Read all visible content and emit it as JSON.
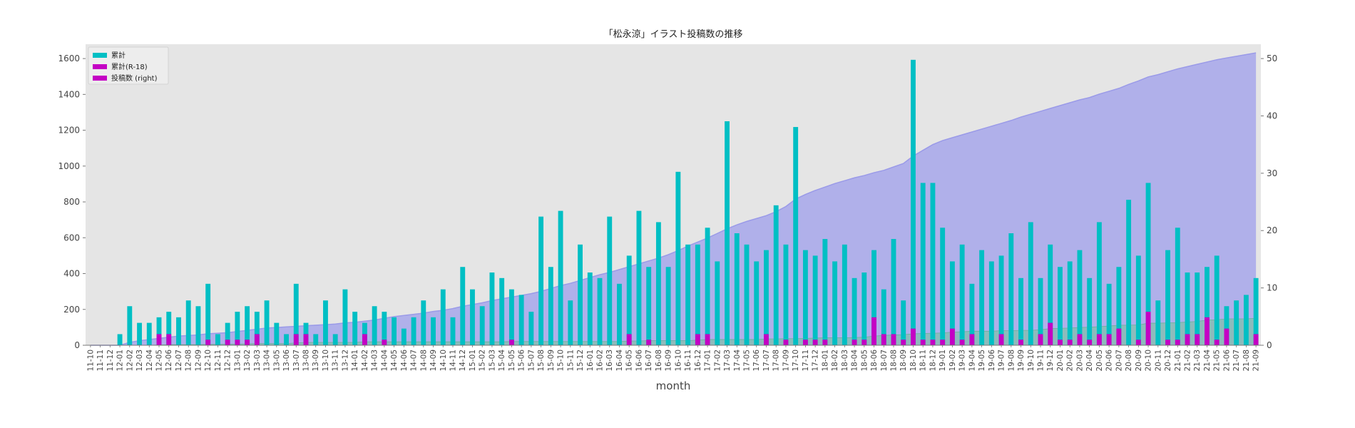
{
  "chart_data": {
    "type": "bar",
    "title": "「松永涼」イラスト投稿数の推移",
    "xlabel": "month",
    "ylabel": "",
    "ylim": [
      0,
      1680
    ],
    "ylim_right": [
      0,
      52.5
    ],
    "yticks": [
      0,
      200,
      400,
      600,
      800,
      1000,
      1200,
      1400,
      1600
    ],
    "yticks_right": [
      0,
      10,
      20,
      30,
      40,
      50
    ],
    "grid": false,
    "legend_position": "top-left",
    "background": "#e5e5e5",
    "colors": {
      "total": "#00bfc4",
      "r18": "#c400c4",
      "area_fill": "#b0b0ea",
      "area_line": "#9a9ae8",
      "right_area_fill": "#7fc0a8"
    },
    "categories": [
      "11-10",
      "11-11",
      "11-12",
      "12-01",
      "12-02",
      "12-03",
      "12-04",
      "12-05",
      "12-06",
      "12-07",
      "12-08",
      "12-09",
      "12-10",
      "12-11",
      "12-12",
      "13-01",
      "13-02",
      "13-03",
      "13-04",
      "13-05",
      "13-06",
      "13-07",
      "13-08",
      "13-09",
      "13-10",
      "13-11",
      "13-12",
      "14-01",
      "14-02",
      "14-03",
      "14-04",
      "14-05",
      "14-06",
      "14-07",
      "14-08",
      "14-09",
      "14-10",
      "14-11",
      "14-12",
      "15-01",
      "15-02",
      "15-03",
      "15-04",
      "15-05",
      "15-06",
      "15-07",
      "15-08",
      "15-09",
      "15-10",
      "15-11",
      "15-12",
      "16-01",
      "16-02",
      "16-03",
      "16-04",
      "16-05",
      "16-06",
      "16-07",
      "16-08",
      "16-09",
      "16-10",
      "16-11",
      "16-12",
      "17-01",
      "17-02",
      "17-03",
      "17-04",
      "17-05",
      "17-06",
      "17-07",
      "17-08",
      "17-09",
      "17-10",
      "17-11",
      "17-12",
      "18-01",
      "18-02",
      "18-03",
      "18-04",
      "18-05",
      "18-06",
      "18-07",
      "18-08",
      "18-09",
      "18-10",
      "18-11",
      "18-12",
      "19-01",
      "19-02",
      "19-03",
      "19-04",
      "19-05",
      "19-06",
      "19-07",
      "19-08",
      "19-09",
      "19-10",
      "19-11",
      "19-12",
      "20-01",
      "20-02",
      "20-03",
      "20-04",
      "20-05",
      "20-06",
      "20-07",
      "20-08",
      "20-09",
      "20-10",
      "20-11",
      "20-12",
      "21-01",
      "21-02",
      "21-03",
      "21-04",
      "21-05",
      "21-06",
      "21-07",
      "21-08",
      "21-09"
    ],
    "series": [
      {
        "name": "累計",
        "axis": "left",
        "kind": "bar",
        "values": [
          0,
          0,
          0,
          62,
          218,
          125,
          125,
          156,
          187,
          156,
          250,
          218,
          343,
          62,
          125,
          187,
          218,
          187,
          250,
          125,
          62,
          343,
          125,
          62,
          250,
          62,
          312,
          187,
          125,
          218,
          187,
          156,
          93,
          156,
          250,
          156,
          312,
          156,
          437,
          312,
          218,
          406,
          375,
          312,
          281,
          187,
          718,
          437,
          750,
          250,
          562,
          406,
          375,
          718,
          343,
          500,
          750,
          437,
          687,
          437,
          968,
          562,
          562,
          656,
          468,
          1250,
          625,
          562,
          468,
          531,
          781,
          562,
          1218,
          531,
          500,
          593,
          468,
          562,
          375,
          406,
          531,
          312,
          593,
          250,
          1593,
          906,
          906,
          656,
          468,
          562,
          343,
          531,
          468,
          500,
          625,
          375,
          687,
          375,
          562,
          437,
          468,
          531,
          375,
          687,
          343,
          437,
          812,
          500,
          906,
          250,
          531,
          656,
          406,
          406,
          437,
          500,
          218,
          250,
          281,
          375
        ]
      },
      {
        "name": "累計(R-18)",
        "axis": "left",
        "kind": "bar",
        "values": [
          0,
          0,
          0,
          0,
          0,
          0,
          0,
          62,
          62,
          0,
          0,
          0,
          31,
          0,
          31,
          31,
          31,
          62,
          0,
          0,
          0,
          62,
          62,
          0,
          0,
          0,
          0,
          0,
          62,
          0,
          31,
          0,
          0,
          0,
          0,
          0,
          0,
          0,
          0,
          0,
          0,
          0,
          0,
          31,
          0,
          0,
          0,
          0,
          0,
          0,
          0,
          0,
          0,
          0,
          0,
          62,
          0,
          31,
          0,
          0,
          0,
          0,
          62,
          62,
          0,
          0,
          0,
          0,
          0,
          62,
          0,
          31,
          0,
          31,
          31,
          31,
          0,
          0,
          31,
          31,
          156,
          62,
          62,
          31,
          93,
          31,
          31,
          31,
          93,
          31,
          62,
          0,
          0,
          62,
          0,
          31,
          0,
          62,
          125,
          31,
          31,
          62,
          31,
          62,
          62,
          93,
          0,
          31,
          187,
          0,
          31,
          31,
          62,
          62,
          156,
          31,
          93,
          0,
          0,
          62
        ]
      },
      {
        "name": "投稿数 (right)",
        "axis": "right",
        "kind": "area",
        "values": [
          0,
          0,
          0,
          0,
          0.5,
          0.8,
          1.0,
          1.2,
          1.4,
          1.6,
          1.7,
          1.8,
          2.0,
          2.1,
          2.2,
          2.4,
          2.6,
          2.8,
          3.0,
          3.1,
          3.2,
          3.3,
          3.4,
          3.5,
          3.6,
          3.7,
          3.9,
          4.0,
          4.2,
          4.4,
          4.7,
          5.0,
          5.2,
          5.4,
          5.6,
          5.9,
          6.1,
          6.4,
          6.8,
          7.1,
          7.4,
          7.8,
          8.1,
          8.4,
          8.7,
          9.0,
          9.4,
          9.9,
          10.4,
          10.8,
          11.3,
          11.8,
          12.3,
          12.7,
          13.2,
          13.7,
          14.2,
          14.7,
          15.2,
          15.8,
          16.5,
          17.3,
          18.0,
          18.7,
          19.5,
          20.3,
          21.0,
          21.6,
          22.1,
          22.6,
          23.3,
          24.2,
          25.5,
          26.3,
          27.0,
          27.6,
          28.2,
          28.7,
          29.2,
          29.6,
          30.1,
          30.5,
          31.1,
          31.7,
          33.0,
          34.0,
          35.0,
          35.7,
          36.2,
          36.7,
          37.2,
          37.7,
          38.2,
          38.7,
          39.2,
          39.8,
          40.3,
          40.8,
          41.3,
          41.8,
          42.3,
          42.8,
          43.2,
          43.8,
          44.3,
          44.8,
          45.5,
          46.1,
          46.8,
          47.2,
          47.7,
          48.2,
          48.6,
          49.0,
          49.4,
          49.8,
          50.1,
          50.4,
          50.7,
          51.0
        ]
      },
      {
        "name": "",
        "axis": "right",
        "kind": "area",
        "values": [
          0,
          0,
          0,
          0,
          0,
          0,
          0,
          0.05,
          0.1,
          0.1,
          0.1,
          0.1,
          0.15,
          0.15,
          0.2,
          0.2,
          0.25,
          0.3,
          0.3,
          0.3,
          0.3,
          0.4,
          0.5,
          0.5,
          0.5,
          0.5,
          0.5,
          0.5,
          0.6,
          0.6,
          0.6,
          0.6,
          0.6,
          0.6,
          0.6,
          0.6,
          0.6,
          0.6,
          0.6,
          0.6,
          0.6,
          0.6,
          0.6,
          0.65,
          0.65,
          0.65,
          0.65,
          0.65,
          0.65,
          0.65,
          0.65,
          0.65,
          0.65,
          0.65,
          0.65,
          0.75,
          0.75,
          0.8,
          0.8,
          0.8,
          0.8,
          0.8,
          0.9,
          1.0,
          1.0,
          1.0,
          1.0,
          1.0,
          1.0,
          1.1,
          1.1,
          1.15,
          1.15,
          1.2,
          1.25,
          1.3,
          1.3,
          1.3,
          1.35,
          1.4,
          1.6,
          1.7,
          1.8,
          1.85,
          2.0,
          2.05,
          2.1,
          2.15,
          2.3,
          2.35,
          2.45,
          2.45,
          2.45,
          2.55,
          2.55,
          2.6,
          2.6,
          2.7,
          2.9,
          2.95,
          3.0,
          3.1,
          3.15,
          3.25,
          3.35,
          3.5,
          3.5,
          3.55,
          3.85,
          3.85,
          3.9,
          3.95,
          4.05,
          4.15,
          4.4,
          4.45,
          4.6,
          4.6,
          4.6,
          4.7
        ]
      }
    ]
  }
}
